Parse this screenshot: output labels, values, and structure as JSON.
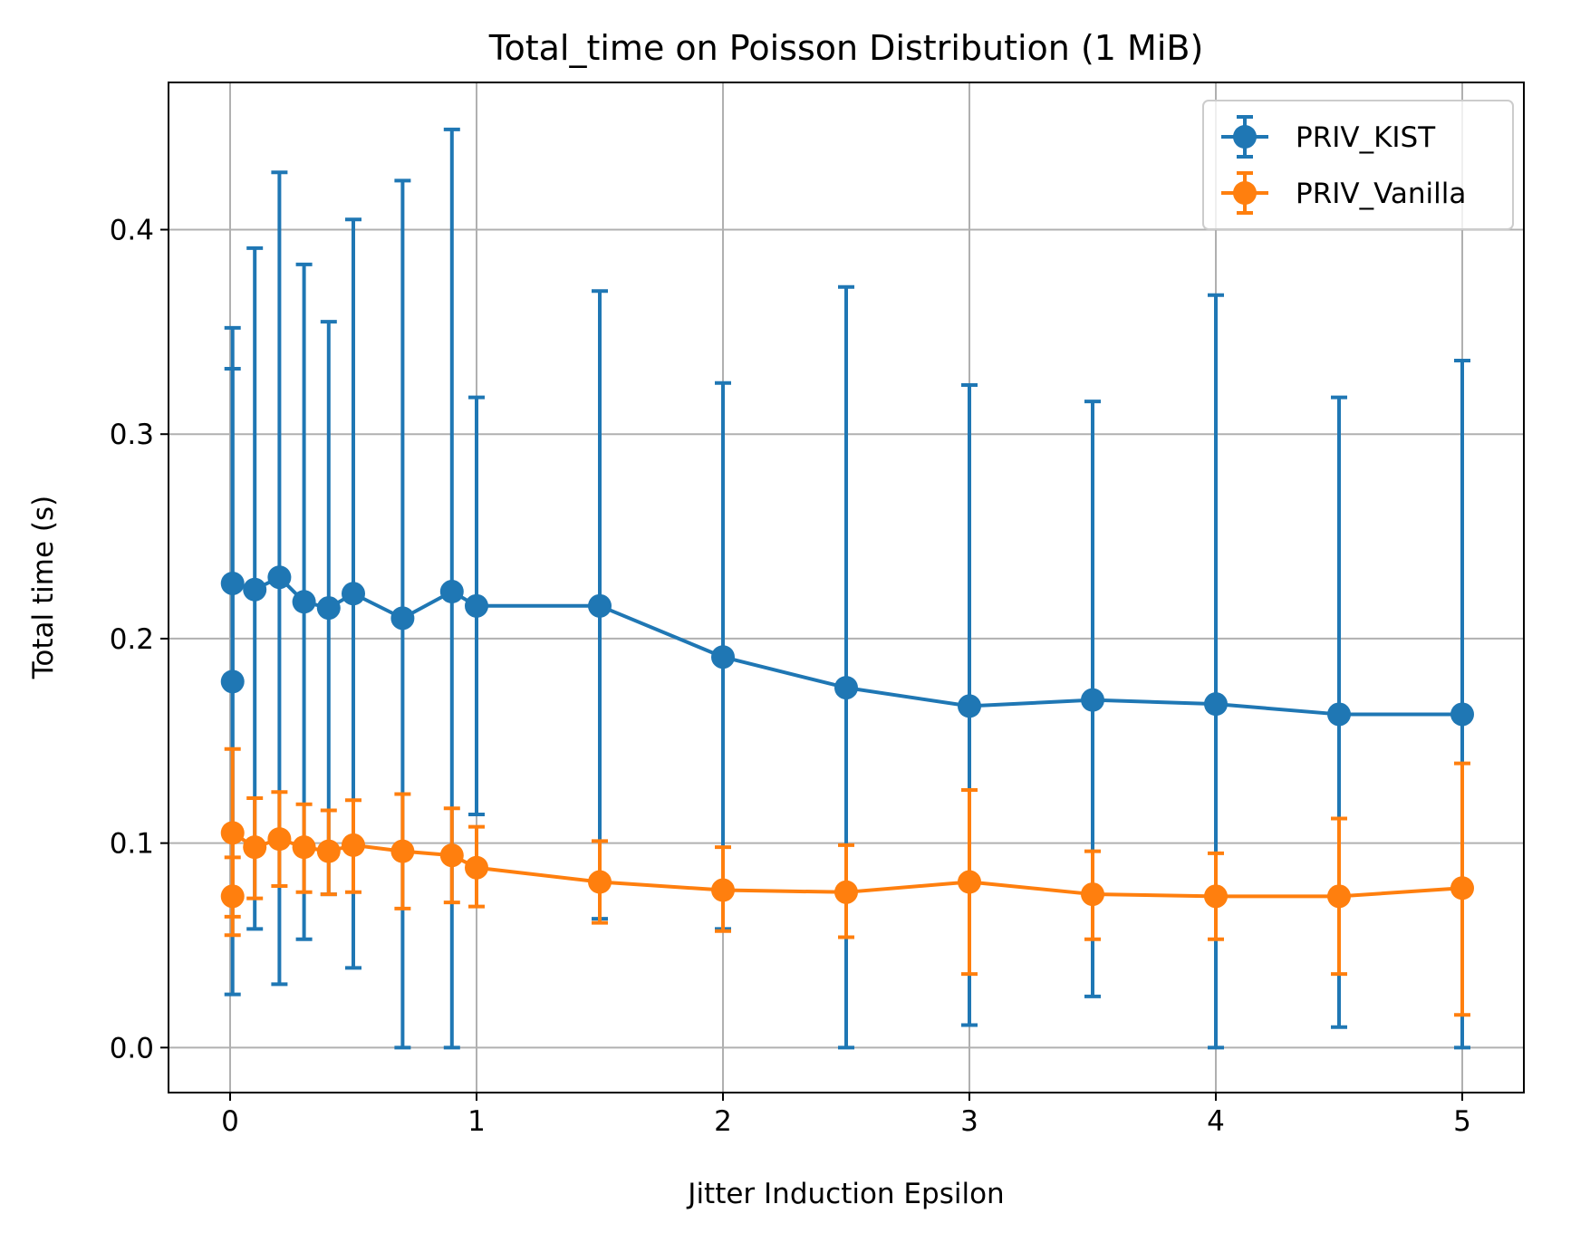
{
  "chart_data": {
    "type": "line",
    "title": "Total_time on Poisson Distribution (1 MiB)",
    "xlabel": "Jitter Induction Epsilon",
    "ylabel": "Total time (s)",
    "xlim": [
      -0.25,
      5.25
    ],
    "ylim": [
      -0.022,
      0.472
    ],
    "xticks": [
      0,
      1,
      2,
      3,
      4,
      5
    ],
    "xtick_labels": [
      "0",
      "1",
      "2",
      "3",
      "4",
      "5"
    ],
    "yticks": [
      0.0,
      0.1,
      0.2,
      0.3,
      0.4
    ],
    "ytick_labels": [
      "0.0",
      "0.1",
      "0.2",
      "0.3",
      "0.4"
    ],
    "grid": true,
    "legend_position": "top-right",
    "error_bars": true,
    "series": [
      {
        "name": "PRIV_KIST",
        "color": "#1f77b4",
        "x": [
          0.01,
          0.01,
          0.1,
          0.2,
          0.3,
          0.4,
          0.5,
          0.7,
          0.9,
          1.0,
          1.5,
          2.0,
          2.5,
          3.0,
          3.5,
          4.0,
          4.5,
          5.0
        ],
        "y": [
          0.179,
          0.227,
          0.224,
          0.23,
          0.218,
          0.215,
          0.222,
          0.21,
          0.223,
          0.216,
          0.216,
          0.191,
          0.176,
          0.167,
          0.17,
          0.168,
          0.163,
          0.163
        ],
        "yerr_low": [
          0.026,
          0.103,
          0.058,
          0.031,
          0.053,
          0.075,
          0.039,
          0.0,
          0.0,
          0.114,
          0.063,
          0.058,
          0.0,
          0.011,
          0.025,
          0.0,
          0.01,
          0.0
        ],
        "yerr_high": [
          0.332,
          0.352,
          0.391,
          0.428,
          0.383,
          0.355,
          0.405,
          0.424,
          0.449,
          0.318,
          0.37,
          0.325,
          0.372,
          0.324,
          0.316,
          0.368,
          0.318,
          0.336
        ]
      },
      {
        "name": "PRIV_Vanilla",
        "color": "#ff7f0e",
        "x": [
          0.01,
          0.01,
          0.1,
          0.2,
          0.3,
          0.4,
          0.5,
          0.7,
          0.9,
          1.0,
          1.5,
          2.0,
          2.5,
          3.0,
          3.5,
          4.0,
          4.5,
          5.0
        ],
        "y": [
          0.074,
          0.105,
          0.098,
          0.102,
          0.098,
          0.096,
          0.099,
          0.096,
          0.094,
          0.088,
          0.081,
          0.077,
          0.076,
          0.081,
          0.075,
          0.074,
          0.074,
          0.078
        ],
        "yerr_low": [
          0.055,
          0.064,
          0.073,
          0.079,
          0.076,
          0.075,
          0.076,
          0.068,
          0.071,
          0.069,
          0.061,
          0.057,
          0.054,
          0.036,
          0.053,
          0.053,
          0.036,
          0.016
        ],
        "yerr_high": [
          0.093,
          0.146,
          0.122,
          0.125,
          0.119,
          0.116,
          0.121,
          0.124,
          0.117,
          0.108,
          0.101,
          0.098,
          0.099,
          0.126,
          0.096,
          0.095,
          0.112,
          0.139
        ]
      }
    ]
  }
}
